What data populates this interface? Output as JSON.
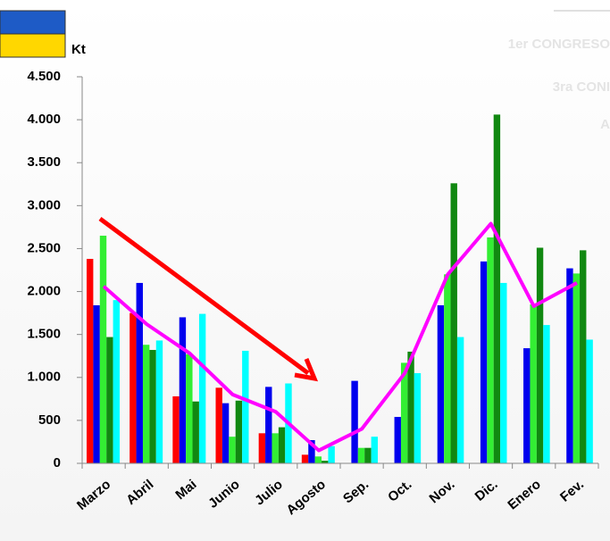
{
  "chart_data": {
    "type": "bar",
    "y_label": "Kt",
    "watermark": [
      "1er CONGRESO",
      "3ra CONI",
      "A"
    ],
    "categories": [
      "Marzo",
      "Abril",
      "Mai",
      "Junio",
      "Julio",
      "Agosto",
      "Sep.",
      "Oct.",
      "Nov.",
      "Dic.",
      "Enero",
      "Fev."
    ],
    "series": [
      {
        "color": "#ff0000",
        "values": [
          2380,
          1750,
          780,
          880,
          350,
          100,
          null,
          null,
          null,
          null,
          null,
          null
        ]
      },
      {
        "color": "#0000ee",
        "values": [
          1840,
          2100,
          1700,
          700,
          890,
          270,
          960,
          540,
          1840,
          2350,
          1340,
          2270
        ]
      },
      {
        "color": "#33ee33",
        "values": [
          2650,
          1380,
          1270,
          310,
          350,
          80,
          180,
          1170,
          2200,
          2630,
          1850,
          2210
        ]
      },
      {
        "color": "#118811",
        "values": [
          1470,
          1320,
          720,
          730,
          420,
          30,
          180,
          1300,
          3260,
          4060,
          2510,
          2480
        ]
      },
      {
        "color": "#00ffff",
        "values": [
          1900,
          1430,
          1740,
          1310,
          930,
          200,
          310,
          1050,
          1470,
          2100,
          1610,
          1440
        ]
      }
    ],
    "line": {
      "type": "line",
      "color": "#ff00ff",
      "values": [
        2060,
        1620,
        1280,
        800,
        600,
        150,
        400,
        1050,
        2200,
        2790,
        1830,
        2100
      ]
    },
    "ylim": [
      0,
      4500
    ],
    "yticks": [
      0,
      500,
      {
        "value": 1000,
        "label": "1.000"
      },
      {
        "value": 1500,
        "label": "1.500"
      },
      {
        "value": 2000,
        "label": "2.000"
      },
      {
        "value": 2500,
        "label": "2.500"
      },
      {
        "value": 3000,
        "label": "3.000"
      },
      {
        "value": 3500,
        "label": "3.500"
      },
      {
        "value": 4000,
        "label": "4.000"
      },
      {
        "value": 4500,
        "label": "4.500"
      }
    ]
  }
}
